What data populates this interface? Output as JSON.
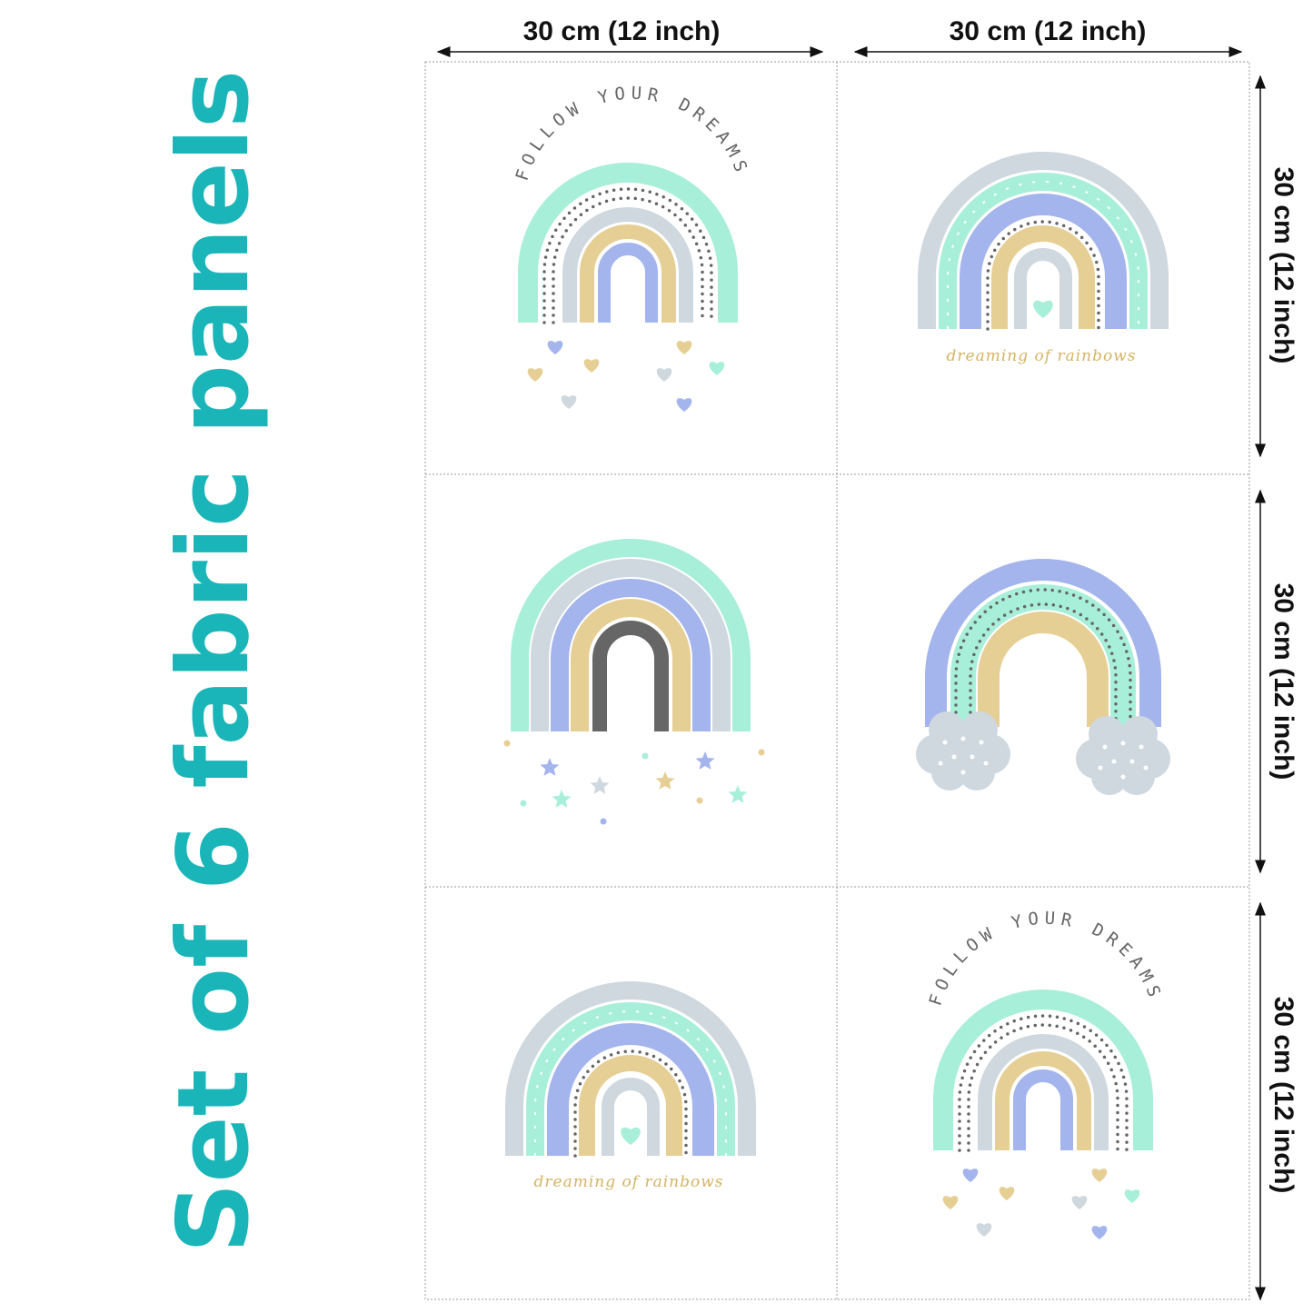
{
  "title": "Set of 6 fabric panels",
  "dimensions": {
    "top": [
      "30 cm (12 inch)",
      "30 cm (12 inch)"
    ],
    "right": [
      "30 cm (12 inch)",
      "30 cm (12 inch)",
      "30 cm (12 inch)"
    ]
  },
  "captions": [
    "FOLLOW YOUR DREAMS",
    "dreaming of rainbows",
    "dreaming of rainbows",
    "FOLLOW YOUR DREAMS"
  ]
}
